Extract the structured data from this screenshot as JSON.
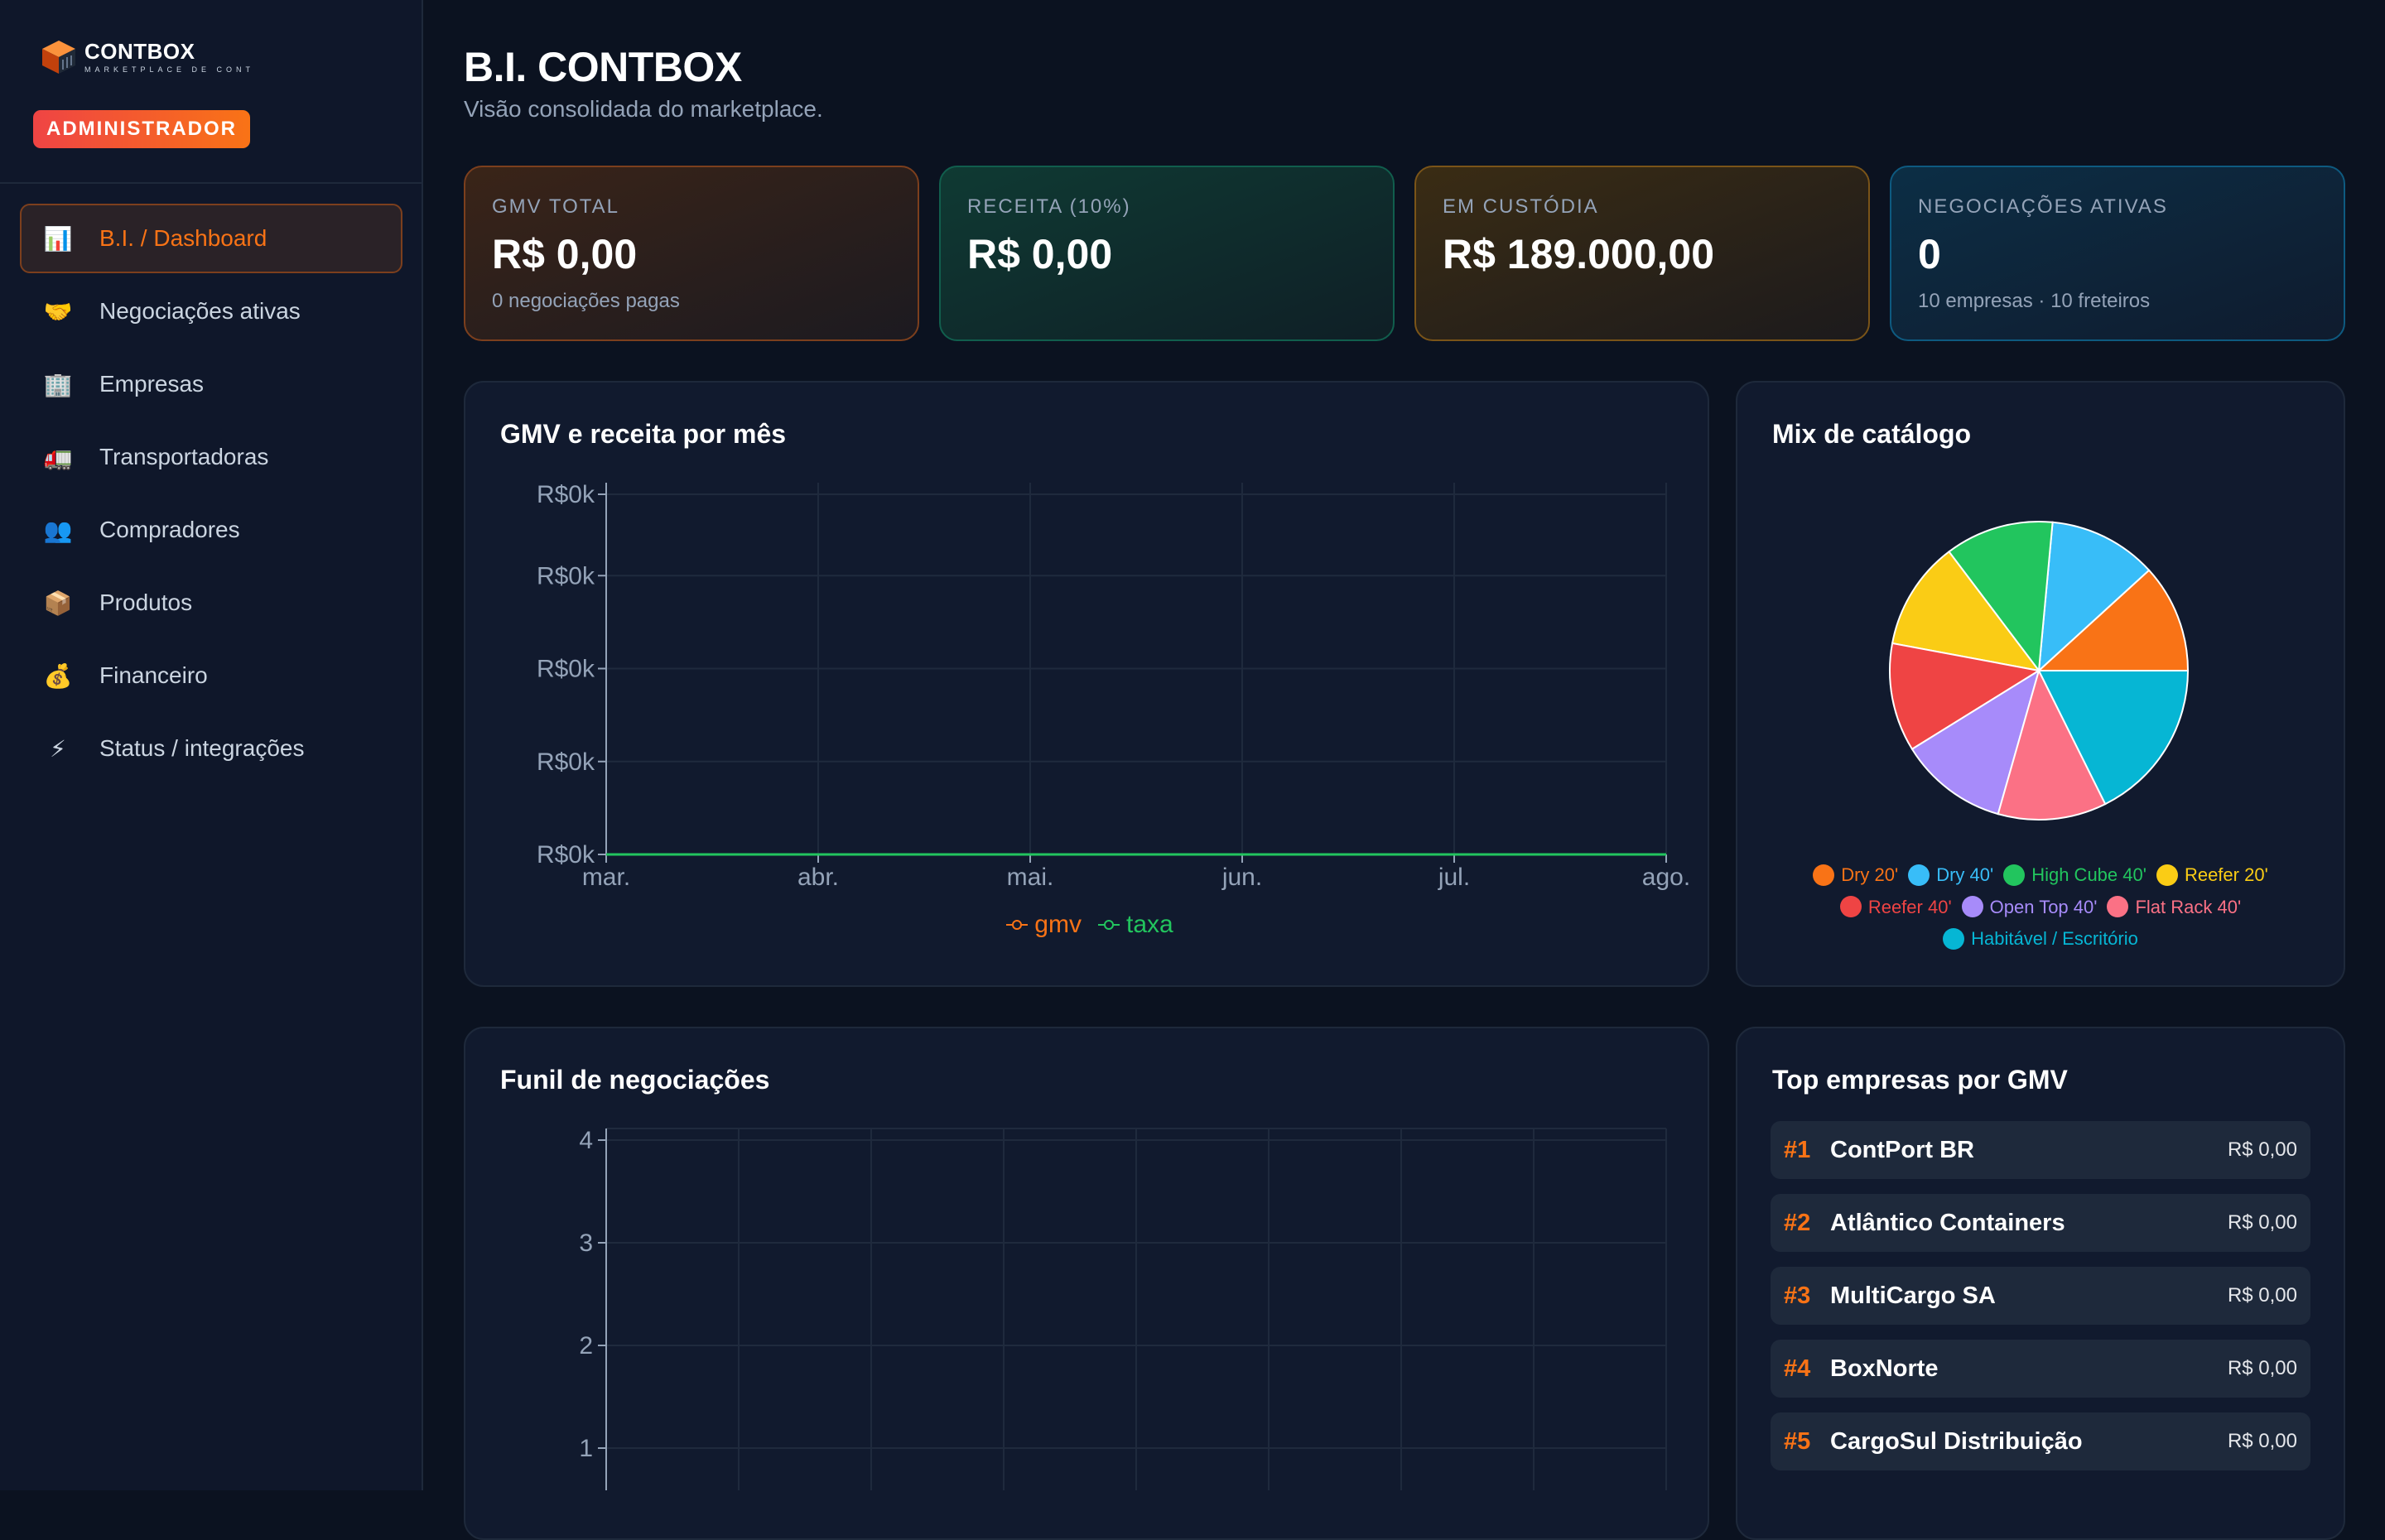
{
  "brand": {
    "name": "CONTBOX",
    "tagline": "MARKETPLACE DE CONTAINERS",
    "role": "ADMINISTRADOR"
  },
  "sidebar": {
    "items": [
      {
        "label": "B.I. / Dashboard",
        "icon": "bar-chart-icon",
        "glyph": "📊",
        "active": true
      },
      {
        "label": "Negociações ativas",
        "icon": "handshake-icon",
        "glyph": "🤝"
      },
      {
        "label": "Empresas",
        "icon": "office-building-icon",
        "glyph": "🏢"
      },
      {
        "label": "Transportadoras",
        "icon": "truck-icon",
        "glyph": "🚛"
      },
      {
        "label": "Compradores",
        "icon": "users-icon",
        "glyph": "👥"
      },
      {
        "label": "Produtos",
        "icon": "package-icon",
        "glyph": "📦"
      },
      {
        "label": "Financeiro",
        "icon": "money-bag-icon",
        "glyph": "💰"
      },
      {
        "label": "Status / integrações",
        "icon": "lightning-icon",
        "glyph": "⚡"
      }
    ]
  },
  "header": {
    "title": "B.I. CONTBOX",
    "subtitle": "Visão consolidada do marketplace."
  },
  "kpis": [
    {
      "label": "GMV TOTAL",
      "value": "R$ 0,00",
      "note": "0 negociações pagas"
    },
    {
      "label": "RECEITA (10%)",
      "value": "R$ 0,00",
      "note": ""
    },
    {
      "label": "EM CUSTÓDIA",
      "value": "R$ 189.000,00",
      "note": ""
    },
    {
      "label": "NEGOCIAÇÕES ATIVAS",
      "value": "0",
      "note": "10 empresas · 10 freteiros"
    }
  ],
  "gmv_card": {
    "title": "GMV e receita por mês"
  },
  "mix_card": {
    "title": "Mix de catálogo"
  },
  "funnel_card": {
    "title": "Funil de negociações"
  },
  "top_card": {
    "title": "Top empresas por GMV",
    "rows": [
      {
        "rank": "#1",
        "name": "ContPort BR",
        "value": "R$ 0,00"
      },
      {
        "rank": "#2",
        "name": "Atlântico Containers",
        "value": "R$ 0,00"
      },
      {
        "rank": "#3",
        "name": "MultiCargo SA",
        "value": "R$ 0,00"
      },
      {
        "rank": "#4",
        "name": "BoxNorte",
        "value": "R$ 0,00"
      },
      {
        "rank": "#5",
        "name": "CargoSul Distribuição",
        "value": "R$ 0,00"
      }
    ]
  },
  "colors": {
    "accent": "#f97316",
    "gmv": "#f97316",
    "taxa": "#22c55e"
  },
  "chart_data": [
    {
      "type": "line",
      "title": "GMV e receita por mês",
      "x": [
        "mar.",
        "abr.",
        "mai.",
        "jun.",
        "jul.",
        "ago."
      ],
      "y_ticks": [
        "R$0k",
        "R$0k",
        "R$0k",
        "R$0k",
        "R$0k"
      ],
      "series": [
        {
          "name": "gmv",
          "color": "#f97316",
          "values": [
            0,
            0,
            0,
            0,
            0,
            0
          ]
        },
        {
          "name": "taxa",
          "color": "#22c55e",
          "values": [
            0,
            0,
            0,
            0,
            0,
            0
          ]
        }
      ],
      "grid": true,
      "legend": "bottom"
    },
    {
      "type": "pie",
      "title": "Mix de catálogo",
      "series": [
        {
          "name": "Dry 20'",
          "color": "#f97316",
          "value": 1
        },
        {
          "name": "Dry 40'",
          "color": "#38bdf8",
          "value": 1
        },
        {
          "name": "High Cube 40'",
          "color": "#22c55e",
          "value": 1
        },
        {
          "name": "Reefer 20'",
          "color": "#facc15",
          "value": 1
        },
        {
          "name": "Reefer 40'",
          "color": "#ef4444",
          "value": 1
        },
        {
          "name": "Open Top 40'",
          "color": "#a78bfa",
          "value": 1
        },
        {
          "name": "Flat Rack 40'",
          "color": "#fb7185",
          "value": 1
        },
        {
          "name": "Habitável / Escritório",
          "color": "#06b6d4",
          "value": 1.5
        }
      ],
      "legend": "bottom"
    },
    {
      "type": "bar",
      "title": "Funil de negociações",
      "y_ticks": [
        4,
        3,
        2,
        1
      ],
      "grid": true
    }
  ]
}
